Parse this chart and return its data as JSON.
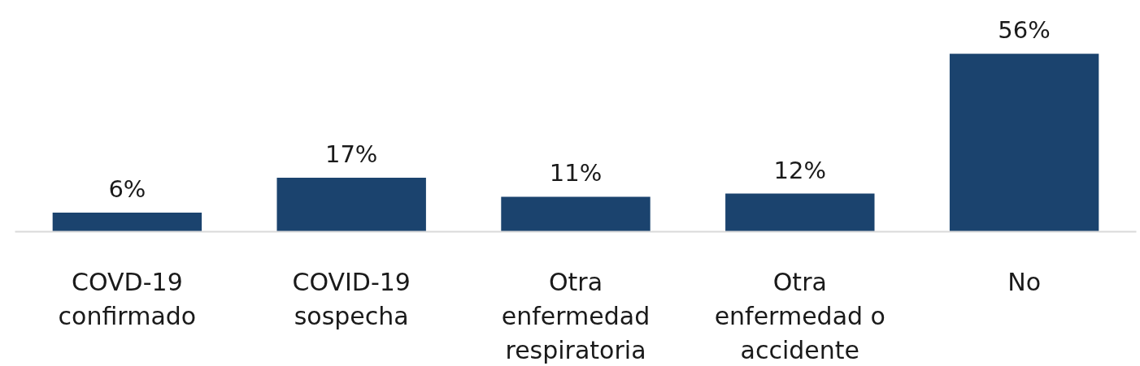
{
  "chart_data": {
    "type": "bar",
    "categories": [
      "COVD-19 confirmado",
      "COVID-19 sospecha",
      "Otra enfermedad respiratoria",
      "Otra enfermedad o accidente",
      "No"
    ],
    "values": [
      6,
      17,
      11,
      12,
      56
    ],
    "value_labels": [
      "6%",
      "17%",
      "11%",
      "12%",
      "56%"
    ],
    "color": "#1b436e",
    "grid": false
  }
}
